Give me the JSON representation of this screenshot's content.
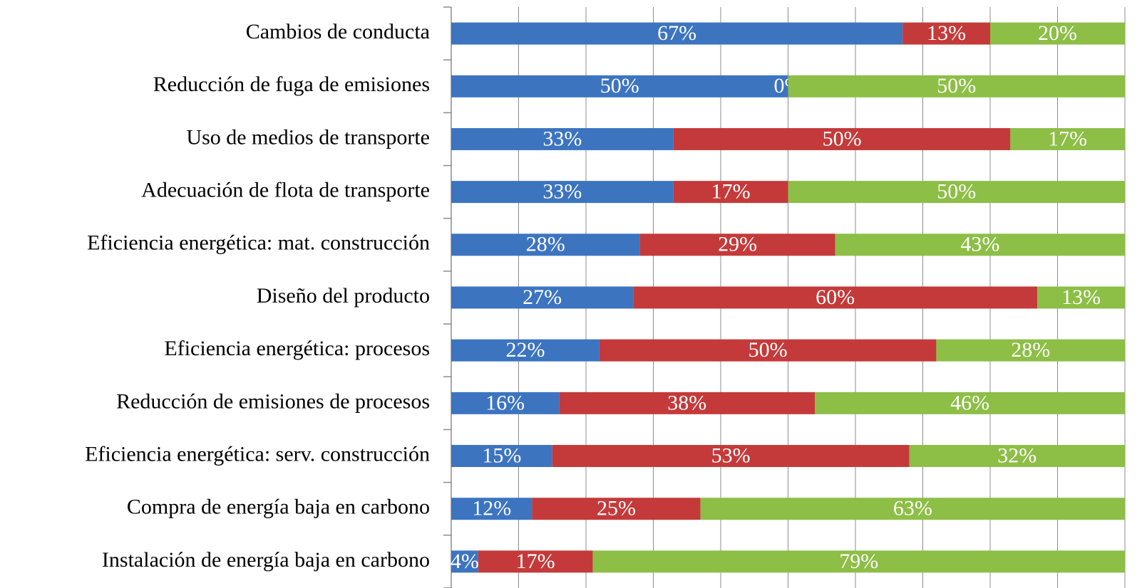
{
  "chart_data": {
    "type": "stacked-barh",
    "categories": [
      "Cambios de conducta",
      "Reducción de fuga de emisiones",
      "Uso de medios de transporte",
      "Adecuación de flota de transporte",
      "Eficiencia energética: mat. construcción",
      "Diseño del producto",
      "Eficiencia energética: procesos",
      "Reducción de emisiones de procesos",
      "Eficiencia energética: serv. construcción",
      "Compra de energía baja en carbono",
      "Instalación de energía baja en carbono"
    ],
    "series": [
      {
        "color": "#3c74c0",
        "values": [
          67,
          50,
          33,
          33,
          28,
          27,
          22,
          16,
          15,
          12,
          4
        ],
        "value_labels": [
          "67%",
          "50%",
          "33%",
          "33%",
          "28%",
          "27%",
          "22%",
          "16%",
          "15%",
          "12%",
          "4%"
        ]
      },
      {
        "color": "#c43a3a",
        "values": [
          13,
          0,
          50,
          17,
          29,
          60,
          50,
          38,
          53,
          25,
          17
        ],
        "value_labels": [
          "13%",
          "0%",
          "50%",
          "17%",
          "29%",
          "60%",
          "50%",
          "38%",
          "53%",
          "25%",
          "17%"
        ]
      },
      {
        "color": "#8dbe46",
        "values": [
          20,
          50,
          17,
          50,
          43,
          13,
          28,
          46,
          32,
          63,
          79
        ],
        "value_labels": [
          "20%",
          "50%",
          "17%",
          "50%",
          "43%",
          "13%",
          "28%",
          "46%",
          "32%",
          "63%",
          "79%"
        ]
      }
    ],
    "xlim": [
      0,
      100
    ],
    "xticks": [
      0,
      10,
      20,
      30,
      40,
      50,
      60,
      70,
      80,
      90,
      100
    ],
    "grid": true
  }
}
